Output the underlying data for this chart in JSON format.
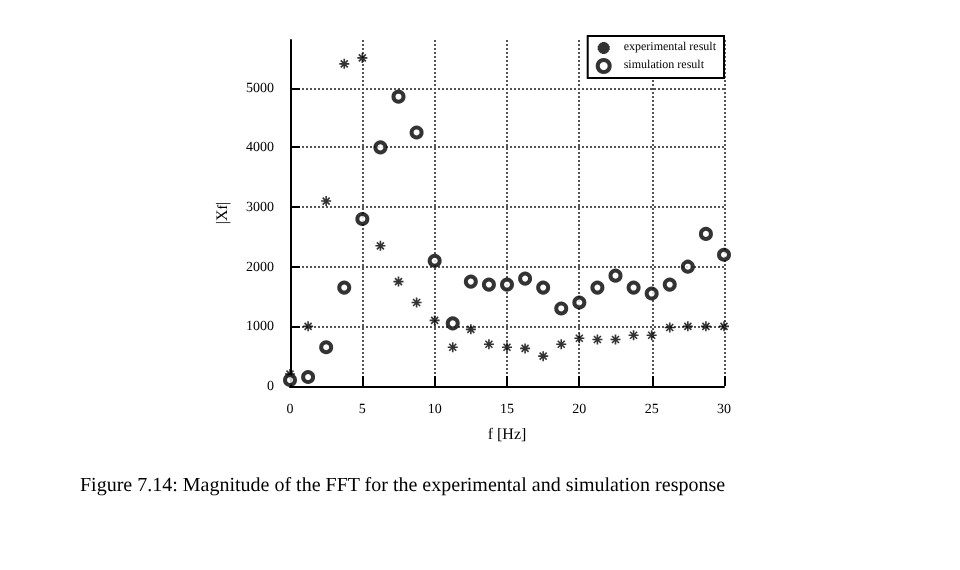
{
  "chart_data": {
    "type": "scatter",
    "xlabel": "f [Hz]",
    "ylabel": "|X$_{f}$|",
    "annotations": [
      "Figure 7.14: Magnitude of the FFT for the experimental and simulation response"
    ],
    "series": [
      {
        "name": "experimental result",
        "color": "#000000",
        "marker": "cross",
        "x": [
          0,
          1.25,
          2.5,
          3.75,
          5,
          6.25,
          7.5,
          8.75,
          10,
          11.25,
          12.5,
          13.75,
          15,
          16.25,
          17.5,
          18.75,
          20,
          21.25,
          22.5,
          23.75,
          25,
          26.25,
          27.5,
          28.75,
          30
        ],
        "values": [
          200,
          1000,
          3100,
          5400,
          5500,
          2350,
          1750,
          1400,
          1100,
          650,
          950,
          700,
          650,
          630,
          500,
          700,
          800,
          780,
          780,
          850,
          850,
          980,
          1000,
          1000,
          1000
        ]
      },
      {
        "name": "simulation result",
        "color": "#000000",
        "marker": "circle",
        "x": [
          0,
          1.25,
          2.5,
          3.75,
          5,
          6.25,
          7.5,
          8.75,
          10,
          11.25,
          12.5,
          13.75,
          15,
          16.25,
          17.5,
          18.75,
          20,
          21.25,
          22.5,
          23.75,
          25,
          26.25,
          27.5,
          28.75,
          30
        ],
        "values": [
          100,
          150,
          650,
          1650,
          2800,
          4000,
          4850,
          4250,
          2100,
          1050,
          1750,
          1700,
          1700,
          1800,
          1650,
          1300,
          1400,
          1650,
          1850,
          1650,
          1550,
          1700,
          2000,
          2550,
          2200
        ]
      }
    ],
    "xlim": [
      0,
      30
    ],
    "xticks": [
      0,
      5,
      10,
      15,
      20,
      25,
      30
    ],
    "ylim": [
      0,
      5800
    ],
    "yticks": [
      0,
      1000,
      2000,
      3000,
      4000,
      5000
    ],
    "grid": true,
    "legend": "top right"
  }
}
